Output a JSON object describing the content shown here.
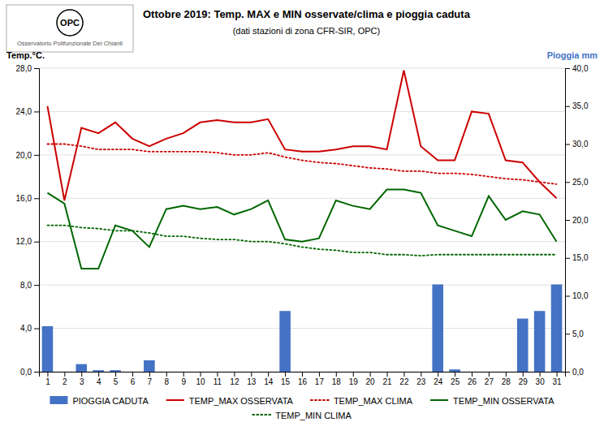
{
  "chart_data": {
    "type": "bar",
    "title": "Ottobre 2019: Temp. MAX e MIN osservate/clima e pioggia caduta",
    "subtitle": "(dati stazioni di zona CFR-SIR, OPC)",
    "ylabel": "Temp.°C.",
    "y2label": "Pioggia mm",
    "annotations": [
      "OPC",
      "Osservatorio Polifunzionale Del Chianti"
    ],
    "x": [
      1,
      2,
      3,
      4,
      5,
      6,
      7,
      8,
      9,
      10,
      11,
      12,
      13,
      14,
      15,
      16,
      17,
      18,
      19,
      20,
      21,
      22,
      23,
      24,
      25,
      26,
      27,
      28,
      29,
      30,
      31
    ],
    "xlim": [
      0.5,
      31.5
    ],
    "xticks": [
      1,
      2,
      3,
      4,
      5,
      6,
      7,
      8,
      9,
      10,
      11,
      12,
      13,
      14,
      15,
      16,
      17,
      18,
      19,
      20,
      21,
      22,
      23,
      24,
      25,
      26,
      27,
      28,
      29,
      30,
      31
    ],
    "ylim": [
      0.0,
      28.0
    ],
    "yticks": [
      {
        "value": 0.0,
        "label": "0,0"
      },
      {
        "value": 4.0,
        "label": "4,0"
      },
      {
        "value": 8.0,
        "label": "8,0"
      },
      {
        "value": 12.0,
        "label": "12,0"
      },
      {
        "value": 16.0,
        "label": "16,0"
      },
      {
        "value": 20.0,
        "label": "20,0"
      },
      {
        "value": 24.0,
        "label": "24,0"
      },
      {
        "value": 28.0,
        "label": "28,0"
      }
    ],
    "y2lim": [
      0.0,
      40.0
    ],
    "y2ticks": [
      {
        "value": 0.0,
        "label": "0,0"
      },
      {
        "value": 5.0,
        "label": "5,0"
      },
      {
        "value": 10.0,
        "label": "10,0"
      },
      {
        "value": 15.0,
        "label": "15,0"
      },
      {
        "value": 20.0,
        "label": "20,0"
      },
      {
        "value": 25.0,
        "label": "25,0"
      },
      {
        "value": 30.0,
        "label": "30,0"
      },
      {
        "value": 35.0,
        "label": "35,0"
      },
      {
        "value": 40.0,
        "label": "40,0"
      }
    ],
    "grid": true,
    "legend": "bottom",
    "series": [
      {
        "name": "PIOGGIA CADUTA",
        "type": "bar",
        "axis": "y2",
        "color": "#4472c4",
        "values": [
          6.0,
          0.0,
          1.0,
          0.2,
          0.2,
          0.0,
          1.5,
          0.0,
          0.0,
          0.0,
          0.0,
          0.0,
          0.0,
          0.0,
          8.0,
          0.0,
          0.0,
          0.0,
          0.0,
          0.0,
          0.0,
          0.0,
          0.0,
          11.5,
          0.3,
          0.0,
          0.0,
          0.0,
          7.0,
          8.0,
          11.5
        ]
      },
      {
        "name": "TEMP_MAX OSSERVATA",
        "type": "line",
        "color": "#cc0000",
        "line_style": "solid",
        "values": [
          24.5,
          15.8,
          22.5,
          22.0,
          23.0,
          21.5,
          20.8,
          21.5,
          22.0,
          23.0,
          23.2,
          23.0,
          23.0,
          23.3,
          20.5,
          20.3,
          20.3,
          20.5,
          20.8,
          20.8,
          20.5,
          27.8,
          20.8,
          19.5,
          19.5,
          24.0,
          23.8,
          19.5,
          19.3,
          17.5,
          16.0
        ]
      },
      {
        "name": "TEMP_MAX CLIMA",
        "type": "line",
        "color": "#cc0000",
        "line_style": "dotted",
        "values": [
          21.0,
          21.0,
          20.8,
          20.5,
          20.5,
          20.5,
          20.3,
          20.3,
          20.3,
          20.3,
          20.2,
          20.0,
          20.0,
          20.2,
          19.8,
          19.5,
          19.3,
          19.2,
          19.0,
          18.8,
          18.7,
          18.5,
          18.5,
          18.3,
          18.3,
          18.2,
          18.0,
          17.8,
          17.7,
          17.5,
          17.3
        ]
      },
      {
        "name": "TEMP_MIN OSSERVATA",
        "type": "line",
        "color": "#006600",
        "line_style": "solid",
        "values": [
          16.5,
          15.5,
          9.5,
          9.5,
          13.5,
          13.0,
          11.5,
          15.0,
          15.3,
          15.0,
          15.2,
          14.5,
          15.0,
          15.8,
          12.2,
          12.0,
          12.3,
          15.8,
          15.3,
          15.0,
          16.8,
          16.8,
          16.5,
          13.5,
          13.0,
          12.5,
          16.2,
          14.0,
          14.8,
          14.5,
          12.0
        ]
      },
      {
        "name": "TEMP_MIN CLIMA",
        "type": "line",
        "color": "#006600",
        "line_style": "dotted",
        "values": [
          13.5,
          13.5,
          13.3,
          13.2,
          13.0,
          13.0,
          12.8,
          12.5,
          12.5,
          12.3,
          12.2,
          12.2,
          12.0,
          12.0,
          11.8,
          11.5,
          11.3,
          11.2,
          11.0,
          11.0,
          10.8,
          10.8,
          10.7,
          10.8,
          10.8,
          10.8,
          10.8,
          10.8,
          10.8,
          10.8,
          10.8
        ]
      }
    ]
  }
}
